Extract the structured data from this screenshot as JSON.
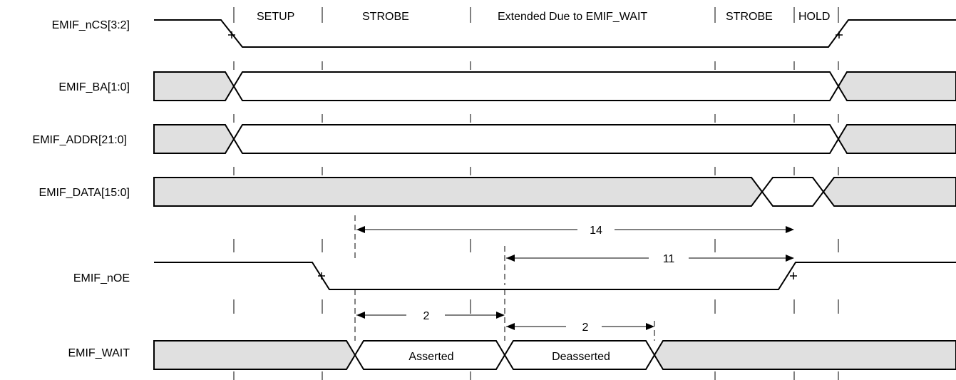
{
  "signals": [
    {
      "id": "ncs",
      "label": "EMIF_nCS[3:2]"
    },
    {
      "id": "ba",
      "label": "EMIF_BA[1:0]"
    },
    {
      "id": "addr",
      "label": "EMIF_ADDR[21:0]"
    },
    {
      "id": "data",
      "label": "EMIF_DATA[15:0]"
    },
    {
      "id": "noe",
      "label": "EMIF_nOE"
    },
    {
      "id": "wait",
      "label": "EMIF_WAIT"
    }
  ],
  "phases": {
    "setup": "SETUP",
    "strobe": "STROBE",
    "extended": "Extended Due to EMIF_WAIT",
    "strobe2": "STROBE",
    "hold": "HOLD"
  },
  "measurements": {
    "m14": "14",
    "m11": "11",
    "m2a": "2",
    "m2b": "2"
  },
  "wait_states": {
    "asserted": "Asserted",
    "deasserted": "Deasserted"
  },
  "colors": {
    "bus_gray": "#e0e0e0",
    "line": "#000000"
  }
}
